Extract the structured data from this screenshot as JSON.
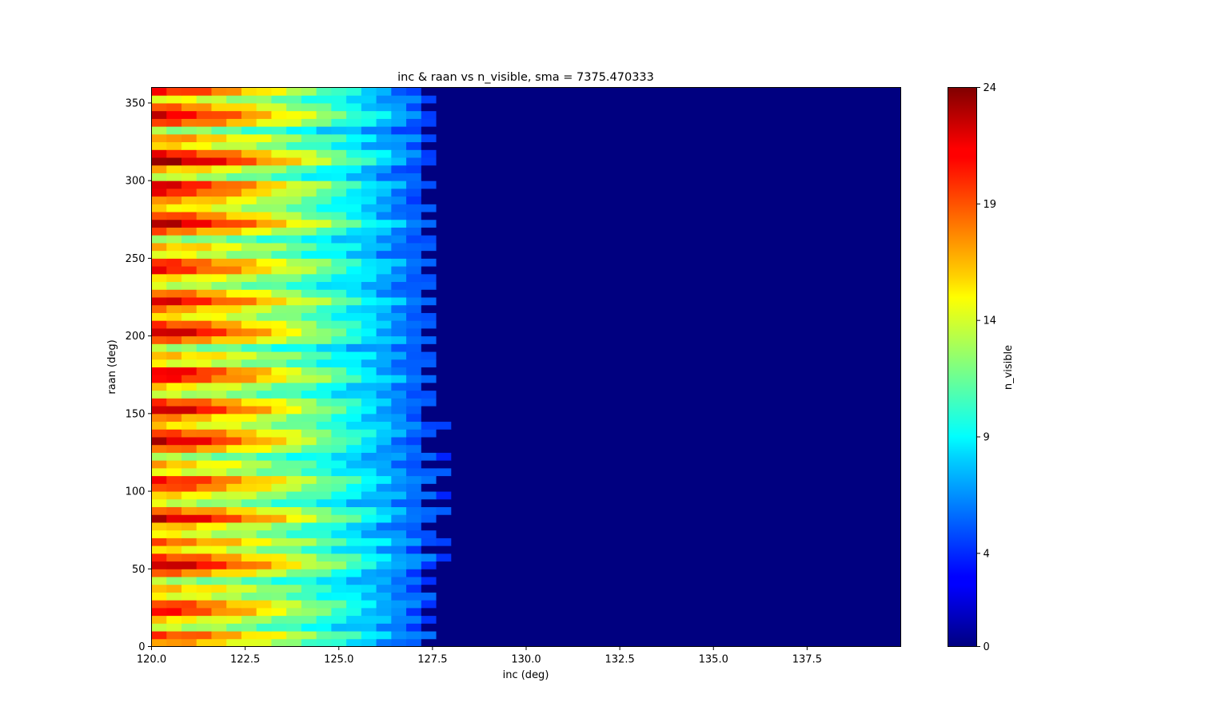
{
  "chart_data": {
    "type": "heatmap",
    "title": "inc & raan vs n_visible, sma = 7375.470333",
    "xlabel": "inc (deg)",
    "ylabel": "raan (deg)",
    "colorbar_label": "n_visible",
    "colormap": "jet",
    "xlim": [
      120.0,
      140.0
    ],
    "ylim": [
      0,
      360
    ],
    "vmin": 0,
    "vmax": 24,
    "x_ticks": [
      "120.0",
      "122.5",
      "125.0",
      "127.5",
      "130.0",
      "132.5",
      "135.0",
      "137.5"
    ],
    "y_ticks": [
      "0",
      "50",
      "100",
      "150",
      "200",
      "250",
      "300",
      "350"
    ],
    "colorbar_ticks": [
      "0",
      "4",
      "9",
      "14",
      "19",
      "24"
    ],
    "grid": false,
    "x_bin_width_deg": 0.4,
    "y_bin_height_deg": 5,
    "row_profiles": {
      "raan_start": [
        0,
        5,
        10,
        15,
        20,
        25,
        30,
        35,
        40,
        45,
        50,
        55,
        60,
        65,
        70,
        75,
        80,
        85,
        90,
        95,
        100,
        105,
        110,
        115,
        120,
        125,
        130,
        135,
        140,
        145,
        150,
        155,
        160,
        165,
        170,
        175,
        180,
        185,
        190,
        195,
        200,
        205,
        210,
        215,
        220,
        225,
        230,
        235,
        240,
        245,
        250,
        255,
        260,
        265,
        270,
        275,
        280,
        285,
        290,
        295,
        300,
        305,
        310,
        315,
        320,
        325,
        330,
        335,
        340,
        345,
        350,
        355
      ],
      "value_at_120_deg": [
        18,
        20,
        14,
        16,
        21,
        20,
        15,
        17,
        13,
        19,
        23,
        20,
        16,
        19,
        15,
        17,
        23,
        19,
        14,
        16,
        20,
        21,
        15,
        17,
        13,
        19,
        23,
        20,
        16,
        18,
        23,
        20,
        14,
        16,
        21,
        22,
        15,
        17,
        13,
        19,
        23,
        20,
        16,
        18,
        22,
        19,
        14,
        16,
        21,
        20,
        15,
        17,
        13,
        19,
        23,
        20,
        16,
        18,
        21,
        22,
        14,
        17,
        24,
        21,
        16,
        18,
        13,
        20,
        22,
        19,
        15,
        21
      ],
      "edge_inc_deg": [
        127.0,
        127.6,
        127.2,
        127.6,
        127.0,
        127.4,
        127.6,
        127.2,
        127.6,
        127.0,
        127.4,
        127.8,
        127.2,
        127.8,
        127.4,
        127.0,
        127.4,
        127.8,
        127.2,
        127.8,
        127.2,
        127.6,
        127.8,
        127.0,
        127.8,
        127.2,
        127.0,
        127.6,
        127.8,
        127.2,
        127.0,
        127.4,
        127.6,
        127.2,
        127.6,
        127.0,
        127.4,
        127.6,
        127.2,
        127.6,
        127.0,
        127.4,
        127.6,
        127.2,
        127.6,
        127.0,
        127.4,
        127.6,
        127.2,
        127.6,
        127.0,
        127.4,
        127.6,
        127.2,
        127.6,
        127.0,
        127.4,
        127.2,
        127.0,
        127.4,
        127.2,
        127.0,
        127.4,
        127.6,
        127.2,
        127.6,
        127.0,
        127.4,
        127.6,
        127.2,
        127.6,
        127.0
      ],
      "value_beyond_edge": 0
    }
  }
}
